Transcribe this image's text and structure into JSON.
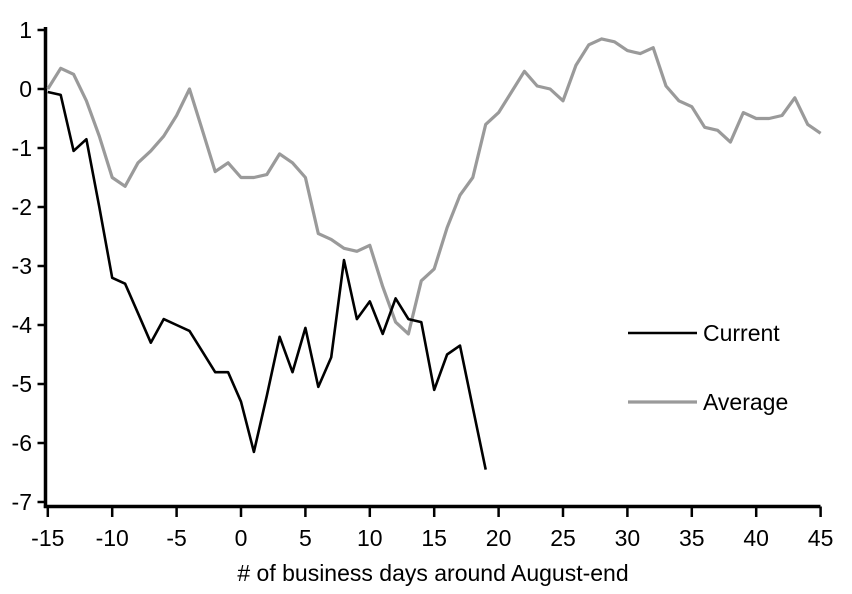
{
  "figure": {
    "background": "#ffffff",
    "axis_color": "#000000"
  },
  "chart_data": {
    "type": "line",
    "title": "",
    "xlabel": "# of business days around August-end",
    "ylabel": "",
    "xlim": [
      -15,
      45
    ],
    "ylim": [
      -7,
      1
    ],
    "x_ticks": [
      -15,
      -10,
      -5,
      0,
      5,
      10,
      15,
      20,
      25,
      30,
      35,
      40,
      45
    ],
    "y_ticks": [
      1,
      0,
      -1,
      -2,
      -3,
      -4,
      -5,
      -6,
      -7
    ],
    "grid": false,
    "legend_position": "right-middle",
    "series": [
      {
        "name": "Current",
        "color": "#000000",
        "stroke_width": 2.6,
        "x": [
          -15,
          -14,
          -13,
          -12,
          -11,
          -10,
          -9,
          -8,
          -7,
          -6,
          -5,
          -4,
          -3,
          -2,
          -1,
          0,
          1,
          2,
          3,
          4,
          5,
          6,
          7,
          8,
          9,
          10,
          11,
          12,
          13,
          14,
          15,
          16,
          17,
          18,
          19
        ],
        "values": [
          -0.05,
          -0.1,
          -1.05,
          -0.85,
          -2.0,
          -3.2,
          -3.3,
          -3.8,
          -4.3,
          -3.9,
          -4.0,
          -4.1,
          -4.45,
          -4.8,
          -4.8,
          -5.3,
          -6.15,
          -5.2,
          -4.2,
          -4.8,
          -4.05,
          -5.05,
          -4.55,
          -2.9,
          -3.9,
          -3.6,
          -4.15,
          -3.55,
          -3.9,
          -3.95,
          -5.1,
          -4.5,
          -4.35,
          -5.4,
          -6.45
        ]
      },
      {
        "name": "Average",
        "color": "#9a9a9a",
        "stroke_width": 3.2,
        "x": [
          -15,
          -14,
          -13,
          -12,
          -11,
          -10,
          -9,
          -8,
          -7,
          -6,
          -5,
          -4,
          -3,
          -2,
          -1,
          0,
          1,
          2,
          3,
          4,
          5,
          6,
          7,
          8,
          9,
          10,
          11,
          12,
          13,
          14,
          15,
          16,
          17,
          18,
          19,
          20,
          21,
          22,
          23,
          24,
          25,
          26,
          27,
          28,
          29,
          30,
          31,
          32,
          33,
          34,
          35,
          36,
          37,
          38,
          39,
          40,
          41,
          42,
          43,
          44,
          45
        ],
        "values": [
          0.0,
          0.35,
          0.25,
          -0.2,
          -0.8,
          -1.5,
          -1.65,
          -1.25,
          -1.05,
          -0.8,
          -0.45,
          0.0,
          -0.7,
          -1.4,
          -1.25,
          -1.5,
          -1.5,
          -1.45,
          -1.1,
          -1.25,
          -1.5,
          -2.45,
          -2.55,
          -2.7,
          -2.75,
          -2.65,
          -3.35,
          -3.95,
          -4.15,
          -3.25,
          -3.05,
          -2.35,
          -1.8,
          -1.5,
          -0.6,
          -0.4,
          -0.05,
          0.3,
          0.05,
          0.0,
          -0.2,
          0.4,
          0.75,
          0.85,
          0.8,
          0.65,
          0.6,
          0.7,
          0.05,
          -0.2,
          -0.3,
          -0.65,
          -0.7,
          -0.9,
          -0.4,
          -0.5,
          -0.5,
          -0.45,
          -0.15,
          -0.6,
          -0.75
        ]
      }
    ]
  }
}
